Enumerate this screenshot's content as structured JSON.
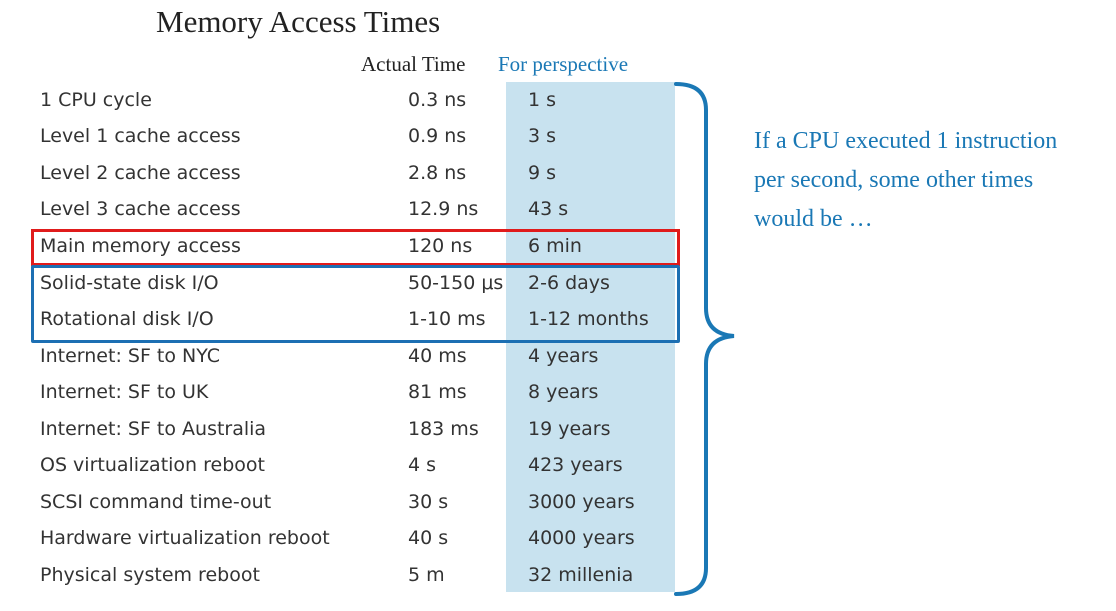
{
  "title": "Memory Access Times",
  "headers": {
    "actual": "Actual Time",
    "perspective": "For perspective"
  },
  "rows": [
    {
      "event": "1 CPU cycle",
      "actual": "0.3 ns",
      "perspective": "1 s"
    },
    {
      "event": "Level 1 cache access",
      "actual": "0.9 ns",
      "perspective": "3 s"
    },
    {
      "event": "Level 2 cache access",
      "actual": "2.8 ns",
      "perspective": "9 s"
    },
    {
      "event": "Level 3 cache access",
      "actual": "12.9 ns",
      "perspective": "43 s"
    },
    {
      "event": "Main memory access",
      "actual": "120 ns",
      "perspective": "6 min"
    },
    {
      "event": "Solid-state disk I/O",
      "actual": "50-150 μs",
      "perspective": "2-6 days"
    },
    {
      "event": "Rotational disk I/O",
      "actual": "1-10 ms",
      "perspective": "1-12 months"
    },
    {
      "event": "Internet: SF to NYC",
      "actual": "40 ms",
      "perspective": "4 years"
    },
    {
      "event": "Internet: SF to UK",
      "actual": "81 ms",
      "perspective": "8 years"
    },
    {
      "event": "Internet: SF to Australia",
      "actual": "183 ms",
      "perspective": "19 years"
    },
    {
      "event": "OS virtualization reboot",
      "actual": "4 s",
      "perspective": "423 years"
    },
    {
      "event": "SCSI command time-out",
      "actual": "30 s",
      "perspective": "3000 years"
    },
    {
      "event": "Hardware virtualization reboot",
      "actual": "40 s",
      "perspective": "4000 years"
    },
    {
      "event": "Physical system reboot",
      "actual": "5 m",
      "perspective": "32 millenia"
    }
  ],
  "annotation": {
    "line1": "If a CPU executed 1 instruction",
    "line2": "per second, some other times",
    "line3": "would be …"
  },
  "colors": {
    "accent_blue": "#1a78b5",
    "highlight_red": "#e01b1b",
    "highlight_blue": "#1c6fb3",
    "perspective_bg": "#c8e2ef"
  }
}
